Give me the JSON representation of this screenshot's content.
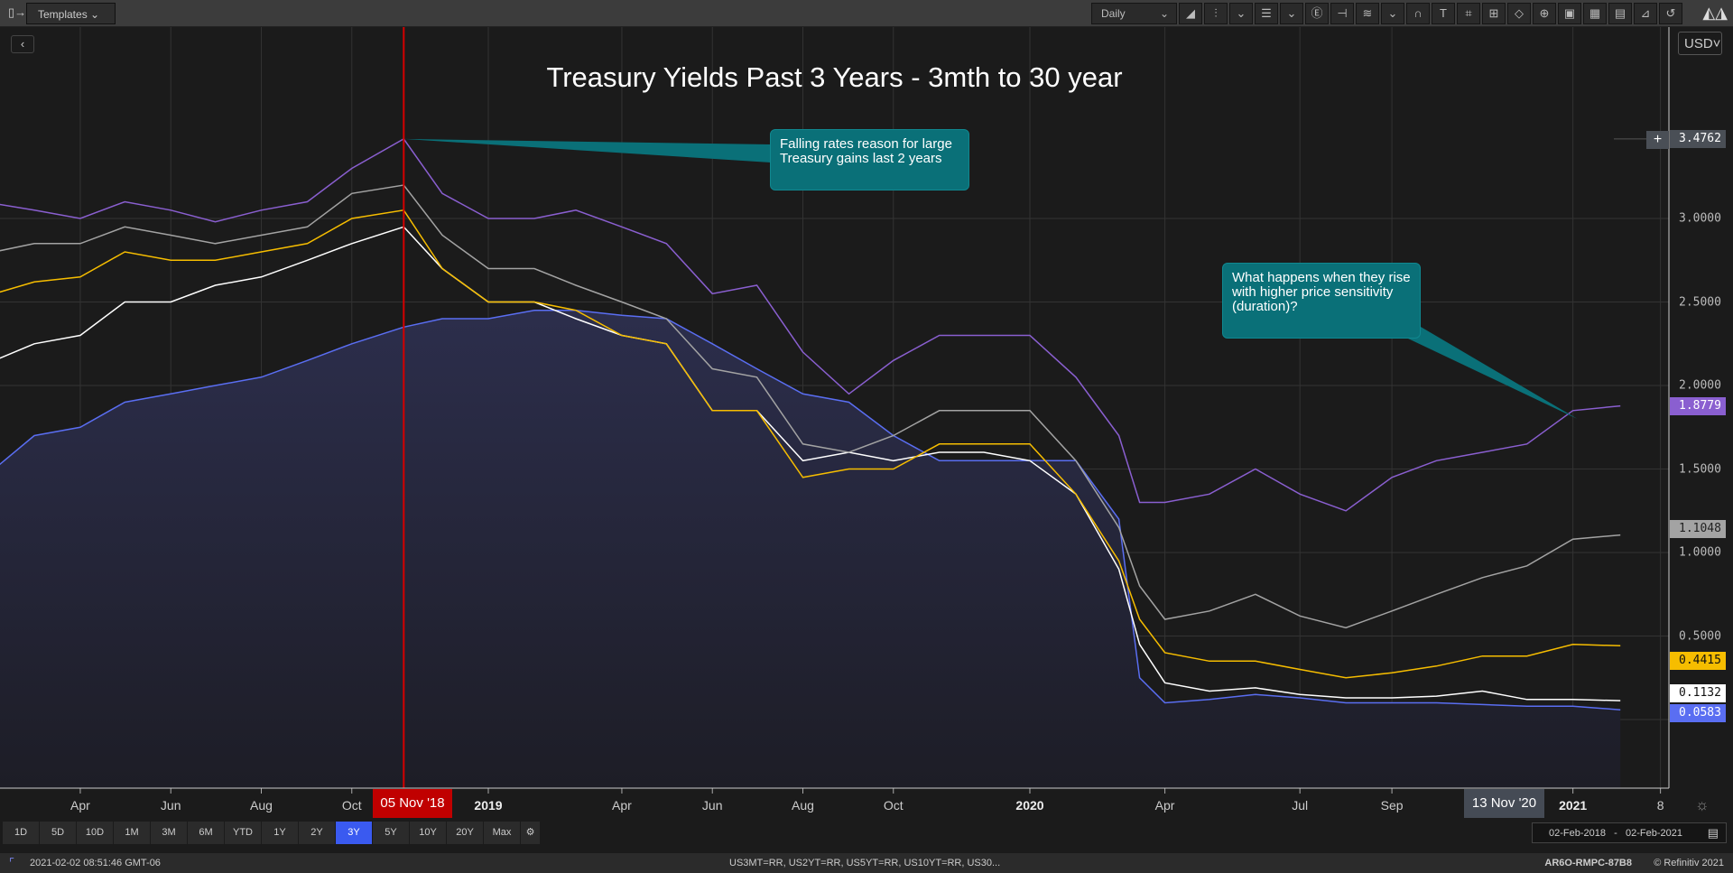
{
  "topbar": {
    "templates_label": "Templates",
    "interval": "Daily",
    "tools": [
      "chart-type-icon",
      "indicators-icon",
      "chevron-down-icon",
      "layout-icon",
      "chevron-down-icon",
      "events-icon",
      "crosshair-icon",
      "drawings-icon",
      "chevron-down-icon",
      "magnet-icon",
      "text-icon",
      "shape-icon",
      "resize-icon",
      "polygon-icon",
      "zoom-icon",
      "excel-icon",
      "table-icon",
      "news-icon",
      "analysis-icon",
      "undo-icon"
    ]
  },
  "currency": "USD",
  "colors": {
    "purple": "#8a5fd0",
    "gray": "#a3a3a3",
    "yellow": "#f6bd00",
    "white": "#ffffff",
    "blue": "#5a6ef2",
    "annotation": "#0a7078",
    "marker": "#d40000"
  },
  "chart_data": {
    "type": "line",
    "title": "Treasury Yields Past 3 Years - 3mth to 30 year",
    "ylim": [
      -0.41,
      4.15
    ],
    "yticks": [
      "3.0000",
      "2.5000",
      "2.0000",
      "1.5000",
      "1.0000",
      "0.5000"
    ],
    "ytick_values": [
      3.0,
      2.5,
      2.0,
      1.5,
      1.0,
      0.5
    ],
    "xticks": [
      {
        "label": "Apr",
        "date": "2018-04-01"
      },
      {
        "label": "Jun",
        "date": "2018-06-01"
      },
      {
        "label": "Aug",
        "date": "2018-08-01"
      },
      {
        "label": "Oct",
        "date": "2018-10-01"
      },
      {
        "label": "2019",
        "date": "2019-01-01",
        "bold": true
      },
      {
        "label": "Apr",
        "date": "2019-04-01"
      },
      {
        "label": "Jun",
        "date": "2019-06-01"
      },
      {
        "label": "Aug",
        "date": "2019-08-01"
      },
      {
        "label": "Oct",
        "date": "2019-10-01"
      },
      {
        "label": "2020",
        "date": "2020-01-01",
        "bold": true
      },
      {
        "label": "Apr",
        "date": "2020-04-01"
      },
      {
        "label": "Jul",
        "date": "2020-07-01"
      },
      {
        "label": "Sep",
        "date": "2020-09-01"
      },
      {
        "label": "2021",
        "date": "2021-01-01",
        "bold": true
      },
      {
        "label": "8",
        "date": "2021-03-01"
      }
    ],
    "dates": [
      "2018-02-02",
      "2018-03-01",
      "2018-04-01",
      "2018-05-01",
      "2018-06-01",
      "2018-07-01",
      "2018-08-01",
      "2018-09-01",
      "2018-10-01",
      "2018-11-05",
      "2018-12-01",
      "2019-01-01",
      "2019-02-01",
      "2019-03-01",
      "2019-04-01",
      "2019-05-01",
      "2019-06-01",
      "2019-07-01",
      "2019-08-01",
      "2019-09-01",
      "2019-10-01",
      "2019-11-01",
      "2019-12-01",
      "2020-01-01",
      "2020-02-01",
      "2020-03-01",
      "2020-03-15",
      "2020-04-01",
      "2020-05-01",
      "2020-06-01",
      "2020-07-01",
      "2020-08-01",
      "2020-09-01",
      "2020-10-01",
      "2020-11-01",
      "2020-12-01",
      "2021-01-01",
      "2021-02-02"
    ],
    "series": [
      {
        "color": "#8a5fd0",
        "last": "1.8779",
        "values": [
          3.09,
          3.05,
          3.0,
          3.1,
          3.05,
          2.98,
          3.05,
          3.1,
          3.3,
          3.4762,
          3.15,
          3.0,
          3.0,
          3.05,
          2.95,
          2.85,
          2.55,
          2.6,
          2.2,
          1.95,
          2.15,
          2.3,
          2.3,
          2.3,
          2.05,
          1.7,
          1.3,
          1.3,
          1.35,
          1.5,
          1.35,
          1.25,
          1.45,
          1.55,
          1.6,
          1.65,
          1.85,
          1.8779
        ]
      },
      {
        "color": "#a3a3a3",
        "last": "1.1048",
        "values": [
          2.8,
          2.85,
          2.85,
          2.95,
          2.9,
          2.85,
          2.9,
          2.95,
          3.15,
          3.2,
          2.9,
          2.7,
          2.7,
          2.6,
          2.5,
          2.4,
          2.1,
          2.05,
          1.65,
          1.6,
          1.7,
          1.85,
          1.85,
          1.85,
          1.55,
          1.15,
          0.8,
          0.6,
          0.65,
          0.75,
          0.62,
          0.55,
          0.65,
          0.75,
          0.85,
          0.92,
          1.08,
          1.1048
        ]
      },
      {
        "color": "#f6bd00",
        "last": "0.4415",
        "values": [
          2.55,
          2.62,
          2.65,
          2.8,
          2.75,
          2.75,
          2.8,
          2.85,
          3.0,
          3.05,
          2.7,
          2.5,
          2.5,
          2.45,
          2.3,
          2.25,
          1.85,
          1.85,
          1.45,
          1.5,
          1.5,
          1.65,
          1.65,
          1.65,
          1.35,
          0.95,
          0.6,
          0.4,
          0.35,
          0.35,
          0.3,
          0.25,
          0.28,
          0.32,
          0.38,
          0.38,
          0.45,
          0.4415
        ]
      },
      {
        "color": "#ffffff",
        "last": "0.1132",
        "values": [
          2.15,
          2.25,
          2.3,
          2.5,
          2.5,
          2.6,
          2.65,
          2.75,
          2.85,
          2.95,
          2.7,
          2.5,
          2.5,
          2.4,
          2.3,
          2.25,
          1.85,
          1.85,
          1.55,
          1.6,
          1.55,
          1.6,
          1.6,
          1.55,
          1.35,
          0.9,
          0.45,
          0.22,
          0.17,
          0.19,
          0.15,
          0.13,
          0.13,
          0.14,
          0.17,
          0.12,
          0.12,
          0.1132
        ]
      },
      {
        "color": "#5a6ef2",
        "last": "0.0583",
        "area": true,
        "values": [
          1.5,
          1.7,
          1.75,
          1.9,
          1.95,
          2.0,
          2.05,
          2.15,
          2.25,
          2.35,
          2.4,
          2.4,
          2.45,
          2.45,
          2.42,
          2.4,
          2.25,
          2.1,
          1.95,
          1.9,
          1.7,
          1.55,
          1.55,
          1.55,
          1.55,
          1.2,
          0.25,
          0.1,
          0.12,
          0.15,
          0.13,
          0.1,
          0.1,
          0.1,
          0.09,
          0.08,
          0.08,
          0.0583
        ]
      }
    ],
    "crosshair_value": "3.4762",
    "marker_date": "2018-11-05",
    "marker_label": "05 Nov '18",
    "hover_label": "13 Nov '20",
    "annotations": [
      {
        "text": "Falling rates reason for large Treasury gains last 2 years",
        "target_date": "2018-11-05",
        "target_value": 3.4762
      },
      {
        "text": "What happens when they rise with higher price sensitivity (duration)?",
        "target_date": "2021-01-04",
        "target_value": 1.8
      }
    ]
  },
  "ranges": [
    "1D",
    "5D",
    "10D",
    "1M",
    "3M",
    "6M",
    "YTD",
    "1Y",
    "2Y",
    "3Y",
    "5Y",
    "10Y",
    "20Y",
    "Max"
  ],
  "active_range": "3Y",
  "date_range": {
    "from": "02-Feb-2018",
    "sep": "-",
    "to": "02-Feb-2021"
  },
  "status": {
    "timestamp": "2021-02-02 08:51:46 GMT-06",
    "instruments": "US3MT=RR, US2YT=RR, US5YT=RR, US10YT=RR, US30...",
    "id": "AR6O-RMPC-87B8",
    "copyright": "© Refinitiv 2021"
  }
}
